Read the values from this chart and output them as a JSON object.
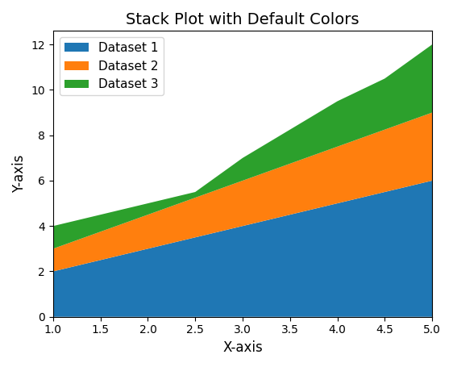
{
  "x": [
    1.0,
    1.5,
    2.0,
    2.5,
    3.0,
    3.5,
    4.0,
    4.5,
    5.0
  ],
  "dataset1": [
    2.0,
    2.5,
    3.0,
    3.5,
    4.0,
    4.5,
    5.0,
    5.5,
    6.0
  ],
  "dataset2": [
    1.0,
    1.25,
    1.5,
    1.75,
    2.0,
    2.25,
    2.5,
    2.75,
    3.0
  ],
  "dataset3": [
    1.0,
    0.75,
    0.5,
    0.25,
    1.0,
    1.5,
    2.0,
    2.25,
    3.0
  ],
  "labels": [
    "Dataset 1",
    "Dataset 2",
    "Dataset 3"
  ],
  "colors": [
    "#1f77b4",
    "#ff7f0e",
    "#2ca02c"
  ],
  "title": "Stack Plot with Default Colors",
  "xlabel": "X-axis",
  "ylabel": "Y-axis",
  "xlim": [
    1.0,
    5.0
  ]
}
